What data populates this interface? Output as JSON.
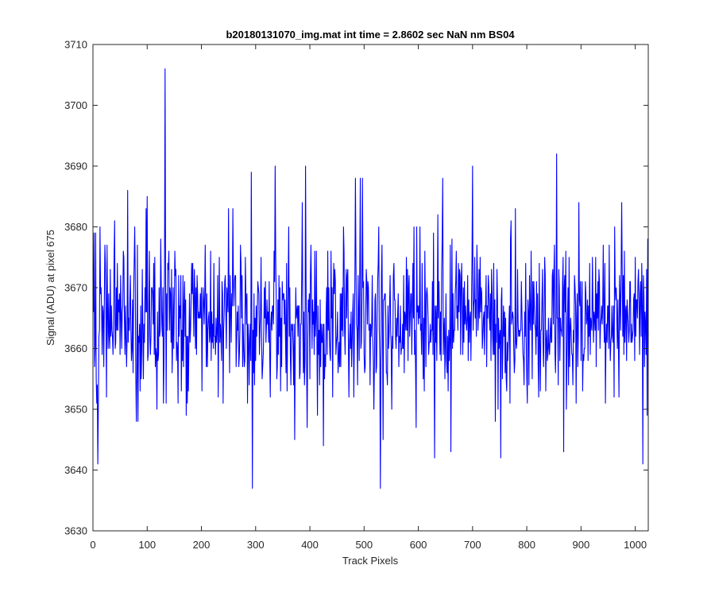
{
  "chart_data": {
    "type": "line",
    "title": "b20180131070_img.mat int time = 2.8602 sec  NaN nm BS04",
    "xlabel": "Track Pixels",
    "ylabel": "Signal (ADU) at pixel 675",
    "xlim": [
      0,
      1024
    ],
    "ylim": [
      3630,
      3710
    ],
    "x_ticks": [
      0,
      100,
      200,
      300,
      400,
      500,
      600,
      700,
      800,
      900,
      1000
    ],
    "y_ticks": [
      3630,
      3640,
      3650,
      3660,
      3670,
      3680,
      3690,
      3700,
      3710
    ],
    "grid": false,
    "series": [
      {
        "color": "#0000ff",
        "x_start": 1,
        "x_step": 1,
        "mean": 3665,
        "std": 6.5,
        "noise_seed": 2018,
        "anchors": [
          [
            1,
            3666
          ],
          [
            2,
            3679
          ],
          [
            5,
            3679
          ],
          [
            7,
            3651
          ],
          [
            9,
            3641
          ],
          [
            13,
            3680
          ],
          [
            25,
            3652
          ],
          [
            40,
            3681
          ],
          [
            83,
            3648
          ],
          [
            98,
            3683
          ],
          [
            100,
            3685
          ],
          [
            118,
            3650
          ],
          [
            130,
            3651
          ],
          [
            133,
            3706
          ],
          [
            135,
            3651
          ],
          [
            157,
            3651
          ],
          [
            172,
            3649
          ],
          [
            250,
            3683
          ],
          [
            258,
            3683
          ],
          [
            292,
            3689
          ],
          [
            294,
            3637
          ],
          [
            336,
            3690
          ],
          [
            372,
            3645
          ],
          [
            392,
            3690
          ],
          [
            395,
            3647
          ],
          [
            425,
            3644
          ],
          [
            484,
            3688
          ],
          [
            493,
            3688
          ],
          [
            497,
            3688
          ],
          [
            530,
            3637
          ],
          [
            535,
            3645
          ],
          [
            630,
            3642
          ],
          [
            645,
            3688
          ],
          [
            660,
            3643
          ],
          [
            700,
            3690
          ],
          [
            742,
            3648
          ],
          [
            752,
            3642
          ],
          [
            855,
            3692
          ],
          [
            868,
            3643
          ],
          [
            975,
            3684
          ],
          [
            1014,
            3641
          ],
          [
            1020,
            3659
          ],
          [
            1024,
            3662
          ]
        ]
      }
    ]
  }
}
